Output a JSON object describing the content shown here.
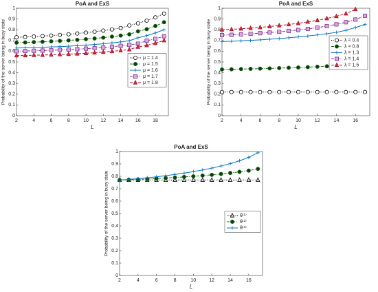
{
  "chart_data": [
    {
      "type": "line",
      "title": "PoA and ExS",
      "xlabel": "L",
      "ylabel": "Probability of the server being in busy state",
      "x": [
        2,
        3,
        4,
        5,
        6,
        7,
        8,
        9,
        10,
        11,
        12,
        13,
        14,
        15,
        16,
        17,
        18,
        19
      ],
      "xlim": [
        2,
        19.5
      ],
      "xticks": [
        2,
        4,
        6,
        8,
        10,
        12,
        14,
        16,
        18
      ],
      "ylim": [
        0,
        1
      ],
      "yticks": [
        0,
        0.1,
        0.2,
        0.3,
        0.4,
        0.5,
        0.6,
        0.7,
        0.8,
        0.9,
        1
      ],
      "grid": false,
      "legend": "center right",
      "series": [
        {
          "name": "μ = 1.4",
          "color": "#000000",
          "marker": "circle-open",
          "linestyle": "dotted",
          "values": [
            0.73,
            0.733,
            0.737,
            0.741,
            0.746,
            0.752,
            0.758,
            0.765,
            0.773,
            0.782,
            0.792,
            0.803,
            0.816,
            0.84,
            0.86,
            0.885,
            0.915,
            0.95
          ]
        },
        {
          "name": "μ = 1.5",
          "color": "#1e6b1e",
          "marker": "circle-filled",
          "linestyle": "dashdot",
          "values": [
            0.68,
            0.682,
            0.685,
            0.688,
            0.692,
            0.696,
            0.701,
            0.706,
            0.712,
            0.719,
            0.727,
            0.736,
            0.746,
            0.757,
            0.785,
            0.805,
            0.835,
            0.87
          ]
        },
        {
          "name": "μ = 1.6",
          "color": "#0072bd",
          "marker": "plus",
          "linestyle": "solid",
          "values": [
            0.63,
            0.632,
            0.634,
            0.637,
            0.64,
            0.643,
            0.647,
            0.652,
            0.657,
            0.663,
            0.67,
            0.678,
            0.687,
            0.698,
            0.725,
            0.745,
            0.77,
            0.8
          ]
        },
        {
          "name": "μ = 1.7",
          "color": "#7e2f8e",
          "marker": "square",
          "linestyle": "dashdot",
          "values": [
            0.6,
            0.602,
            0.604,
            0.606,
            0.609,
            0.612,
            0.615,
            0.619,
            0.624,
            0.629,
            0.635,
            0.642,
            0.65,
            0.659,
            0.67,
            0.698,
            0.715,
            0.74
          ]
        },
        {
          "name": "μ = 1.8",
          "color": "#a2142f",
          "marker": "triangle",
          "linestyle": "dashed",
          "values": [
            0.56,
            0.561,
            0.563,
            0.565,
            0.567,
            0.57,
            0.573,
            0.577,
            0.581,
            0.586,
            0.592,
            0.599,
            0.607,
            0.616,
            0.64,
            0.655,
            0.675,
            0.7
          ]
        }
      ]
    },
    {
      "type": "line",
      "title": "PoA and ExS",
      "xlabel": "L",
      "ylabel": "Probability of the server being in busy state",
      "x": [
        2,
        3,
        4,
        5,
        6,
        7,
        8,
        9,
        10,
        11,
        12,
        13,
        14,
        15,
        16,
        17
      ],
      "xlim": [
        2,
        17.5
      ],
      "xticks": [
        2,
        4,
        6,
        8,
        10,
        12,
        14,
        16
      ],
      "ylim": [
        0,
        1
      ],
      "yticks": [
        0,
        0.1,
        0.2,
        0.3,
        0.4,
        0.5,
        0.6,
        0.7,
        0.8,
        0.9,
        1
      ],
      "grid": false,
      "legend": "upper right",
      "series": [
        {
          "name": "λ = 0.4",
          "color": "#000000",
          "marker": "circle-open",
          "linestyle": "dotted",
          "values": [
            0.22,
            0.22,
            0.22,
            0.22,
            0.22,
            0.22,
            0.22,
            0.22,
            0.22,
            0.22,
            0.22,
            0.22,
            0.22,
            0.22,
            0.22,
            0.22
          ]
        },
        {
          "name": "λ = 0.8",
          "color": "#1e6b1e",
          "marker": "circle-filled",
          "linestyle": "dashdot",
          "values": [
            0.43,
            0.432,
            0.434,
            0.436,
            0.438,
            0.44,
            0.443,
            0.446,
            0.449,
            0.452,
            0.456,
            0.46,
            0.465,
            0.47,
            0.478,
            0.488
          ]
        },
        {
          "name": "λ = 1.3",
          "color": "#0072bd",
          "marker": "plus",
          "linestyle": "solid",
          "values": [
            0.69,
            0.693,
            0.697,
            0.701,
            0.706,
            0.712,
            0.718,
            0.725,
            0.733,
            0.742,
            0.752,
            0.763,
            0.776,
            0.795,
            0.82,
            0.85
          ]
        },
        {
          "name": "λ = 1.4",
          "color": "#7e2f8e",
          "marker": "square",
          "linestyle": "dashdot",
          "values": [
            0.75,
            0.753,
            0.757,
            0.762,
            0.768,
            0.774,
            0.781,
            0.789,
            0.798,
            0.808,
            0.82,
            0.834,
            0.85,
            0.87,
            0.895,
            0.93
          ]
        },
        {
          "name": "λ = 1.5",
          "color": "#a2142f",
          "marker": "triangle",
          "linestyle": "dashed",
          "values": [
            0.8,
            0.804,
            0.809,
            0.815,
            0.822,
            0.83,
            0.839,
            0.849,
            0.86,
            0.873,
            0.888,
            0.905,
            0.925,
            0.95,
            0.99,
            null
          ]
        }
      ]
    },
    {
      "type": "line",
      "title": "PoA and ExS",
      "xlabel": "L",
      "ylabel": "Probability of the server being in busy state",
      "x": [
        2,
        3,
        4,
        5,
        6,
        7,
        8,
        9,
        10,
        11,
        12,
        13,
        14,
        15,
        16,
        17
      ],
      "xlim": [
        2,
        17.5
      ],
      "xticks": [
        2,
        4,
        6,
        8,
        10,
        12,
        14,
        16
      ],
      "ylim": [
        0,
        1
      ],
      "yticks": [
        0,
        0.1,
        0.2,
        0.3,
        0.4,
        0.5,
        0.6,
        0.7,
        0.8,
        0.9,
        1
      ],
      "grid": false,
      "legend": "center right",
      "series": [
        {
          "name": "θ⁽¹⁾",
          "color": "#000000",
          "marker": "triangle-open",
          "linestyle": "dotted",
          "values": [
            0.77,
            0.77,
            0.77,
            0.77,
            0.77,
            0.77,
            0.77,
            0.77,
            0.77,
            0.77,
            0.77,
            0.77,
            0.77,
            0.77,
            0.77,
            0.77
          ]
        },
        {
          "name": "θ⁽²⁾",
          "color": "#1e6b1e",
          "marker": "circle-filled",
          "linestyle": "dashdot",
          "values": [
            0.77,
            0.772,
            0.775,
            0.778,
            0.782,
            0.786,
            0.79,
            0.795,
            0.8,
            0.806,
            0.812,
            0.819,
            0.827,
            0.836,
            0.846,
            0.86
          ]
        },
        {
          "name": "θ⁽³⁾",
          "color": "#0072bd",
          "marker": "plus",
          "linestyle": "solid",
          "values": [
            0.77,
            0.775,
            0.781,
            0.788,
            0.796,
            0.805,
            0.815,
            0.826,
            0.838,
            0.851,
            0.866,
            0.883,
            0.902,
            0.925,
            0.953,
            0.99
          ]
        }
      ]
    }
  ]
}
